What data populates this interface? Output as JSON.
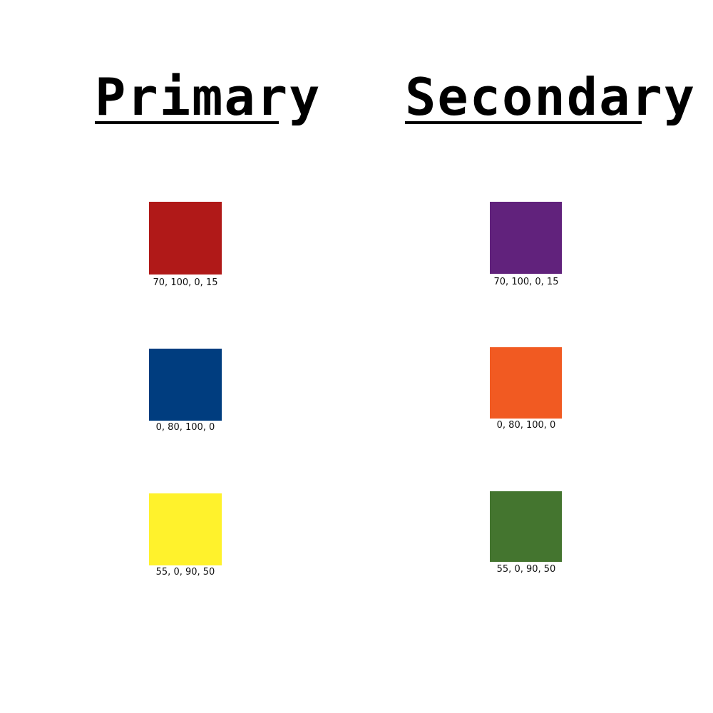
{
  "columns": [
    {
      "title": "Primary",
      "swatches": [
        {
          "color": "#B01918",
          "label": "70, 100, 0, 15"
        },
        {
          "color": "#003D7F",
          "label": "0, 80, 100, 0"
        },
        {
          "color": "#FFF22C",
          "label": "55, 0, 90, 50"
        }
      ]
    },
    {
      "title": "Secondary",
      "swatches": [
        {
          "color": "#61227C",
          "label": "70, 100, 0, 15"
        },
        {
          "color": "#F15A22",
          "label": "0, 80, 100, 0"
        },
        {
          "color": "#44752F",
          "label": "55, 0, 90, 50"
        }
      ]
    }
  ]
}
